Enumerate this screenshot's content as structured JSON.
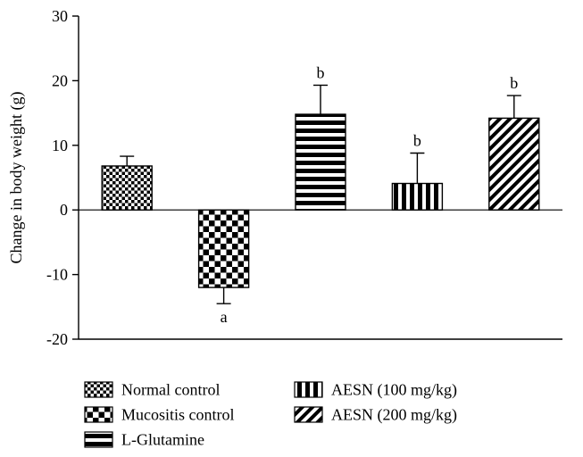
{
  "chart_data": {
    "type": "bar",
    "title": "",
    "xlabel": "",
    "ylabel": "Change in body weight (g)",
    "ylim": [
      -20,
      30
    ],
    "yticks": [
      30,
      20,
      10,
      0,
      -10,
      -20
    ],
    "grid": false,
    "legend_position": "bottom",
    "categories": [
      "Normal control",
      "Mucositis control",
      "L-Glutamine",
      "AESN (100 mg/kg)",
      "AESN (200 mg/kg)"
    ],
    "values": [
      6.8,
      -12.0,
      14.8,
      4.1,
      14.2
    ],
    "errors": [
      1.5,
      2.5,
      4.5,
      4.7,
      3.5
    ],
    "sig_labels": [
      "",
      "a",
      "b",
      "b",
      "b"
    ],
    "patterns": [
      "checker-small",
      "checker-large",
      "hlines",
      "vlines",
      "diag"
    ],
    "bar_color": "#000000",
    "axis_color": "#000000",
    "legend": [
      {
        "label": "Normal control",
        "pattern": "checker-small"
      },
      {
        "label": "Mucositis control",
        "pattern": "checker-large"
      },
      {
        "label": "L-Glutamine",
        "pattern": "hlines"
      },
      {
        "label": "AESN (100 mg/kg)",
        "pattern": "vlines"
      },
      {
        "label": "AESN (200 mg/kg)",
        "pattern": "diag"
      }
    ]
  }
}
